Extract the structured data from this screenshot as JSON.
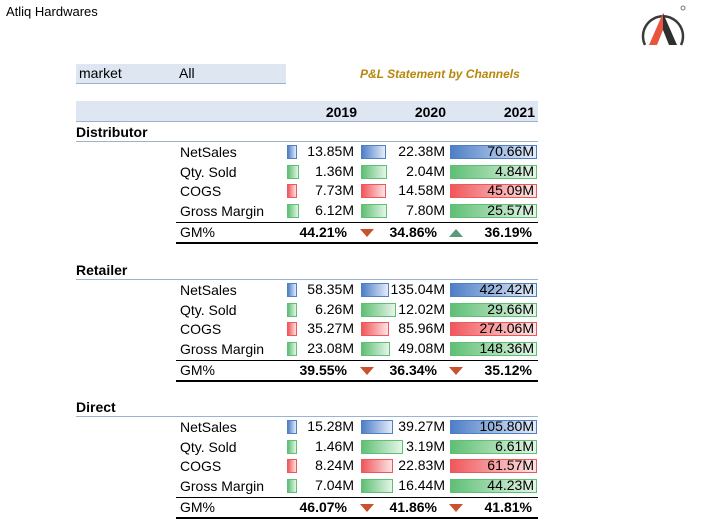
{
  "header": {
    "company": "Atliq Hardwares"
  },
  "filter": {
    "key": "market",
    "value": "All"
  },
  "report_title": "P&L Statement by Channels",
  "years": [
    "2019",
    "2020",
    "2021"
  ],
  "colors": {
    "netsales": "#4e7fc7",
    "qty": "#5fbf74",
    "cogs": "#f0575b",
    "gross_margin": "#5fbf74",
    "arrow_down": "#c8512e",
    "arrow_up": "#5a9a7a"
  },
  "sections": [
    {
      "title": "Distributor",
      "rows": [
        {
          "label": "NetSales",
          "kind": "blue",
          "values": [
            "13.85M",
            "22.38M",
            "70.66M"
          ],
          "fill": [
            0.14,
            0.29,
            1.0
          ]
        },
        {
          "label": "Qty. Sold",
          "kind": "green",
          "values": [
            "1.36M",
            "2.04M",
            "4.84M"
          ],
          "fill": [
            0.17,
            0.3,
            1.0
          ]
        },
        {
          "label": "COGS",
          "kind": "red",
          "values": [
            "7.73M",
            "14.58M",
            "45.09M"
          ],
          "fill": [
            0.14,
            0.29,
            1.0
          ]
        },
        {
          "label": "Gross Margin",
          "kind": "green",
          "values": [
            "6.12M",
            "7.80M",
            "25.57M"
          ],
          "fill": [
            0.17,
            0.3,
            1.0
          ]
        }
      ],
      "gm": {
        "label": "GM%",
        "values": [
          "44.21%",
          "34.86%",
          "36.19%"
        ],
        "arrows": [
          "down",
          "up"
        ]
      }
    },
    {
      "title": "Retailer",
      "rows": [
        {
          "label": "NetSales",
          "kind": "blue",
          "values": [
            "58.35M",
            "135.04M",
            "422.42M"
          ],
          "fill": [
            0.1,
            0.32,
            1.0
          ]
        },
        {
          "label": "Qty. Sold",
          "kind": "green",
          "values": [
            "6.26M",
            "12.02M",
            "29.66M"
          ],
          "fill": [
            0.14,
            0.4,
            1.0
          ]
        },
        {
          "label": "COGS",
          "kind": "red",
          "values": [
            "35.27M",
            "85.96M",
            "274.06M"
          ],
          "fill": [
            0.1,
            0.32,
            1.0
          ]
        },
        {
          "label": "Gross Margin",
          "kind": "green",
          "values": [
            "23.08M",
            "49.08M",
            "148.36M"
          ],
          "fill": [
            0.14,
            0.33,
            1.0
          ]
        }
      ],
      "gm": {
        "label": "GM%",
        "values": [
          "39.55%",
          "36.34%",
          "35.12%"
        ],
        "arrows": [
          "down",
          "down"
        ]
      }
    },
    {
      "title": "Direct",
      "rows": [
        {
          "label": "NetSales",
          "kind": "blue",
          "values": [
            "15.28M",
            "39.27M",
            "105.80M"
          ],
          "fill": [
            0.14,
            0.37,
            1.0
          ]
        },
        {
          "label": "Qty. Sold",
          "kind": "green",
          "values": [
            "1.46M",
            "3.19M",
            "6.61M"
          ],
          "fill": [
            0.13,
            0.48,
            1.0
          ]
        },
        {
          "label": "COGS",
          "kind": "red",
          "values": [
            "8.24M",
            "22.83M",
            "61.57M"
          ],
          "fill": [
            0.1,
            0.37,
            1.0
          ]
        },
        {
          "label": "Gross Margin",
          "kind": "green",
          "values": [
            "7.04M",
            "16.44M",
            "44.23M"
          ],
          "fill": [
            0.13,
            0.37,
            1.0
          ]
        }
      ],
      "gm": {
        "label": "GM%",
        "values": [
          "46.07%",
          "41.86%",
          "41.81%"
        ],
        "arrows": [
          "down",
          "down"
        ]
      }
    }
  ]
}
